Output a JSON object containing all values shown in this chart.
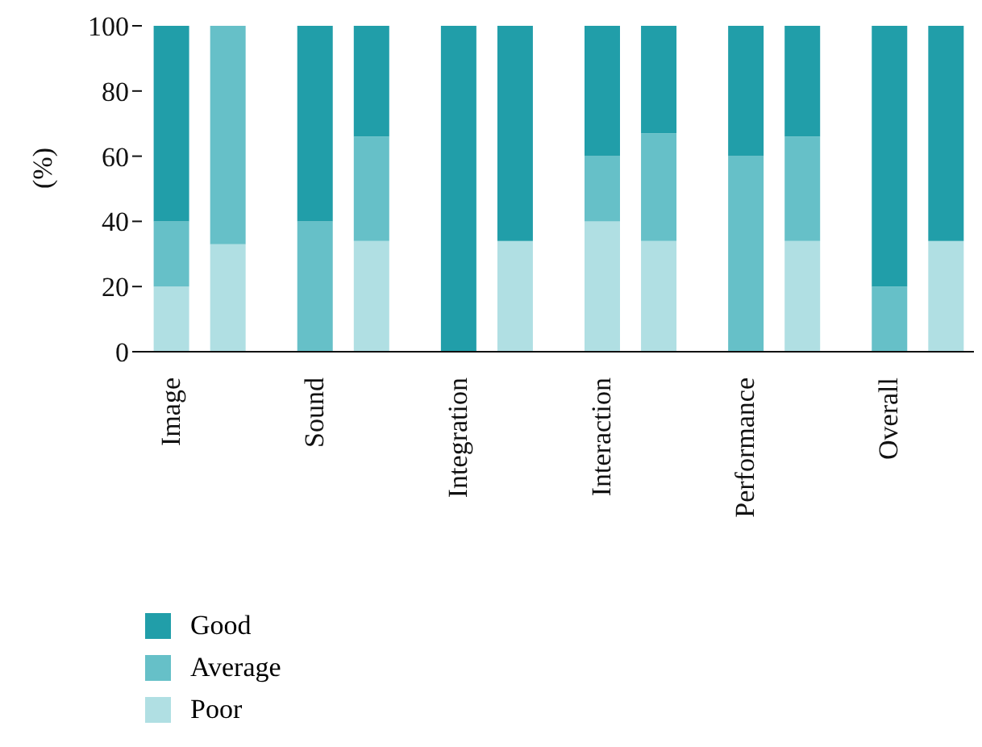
{
  "chart_data": {
    "type": "bar",
    "ylabel": "(%)",
    "categories": [
      "Image",
      null,
      "Sound",
      null,
      "Integration",
      null,
      "Interaction",
      null,
      "Performance",
      null,
      "Overall",
      null
    ],
    "stacked": true,
    "series": [
      {
        "name": "Poor",
        "color": "#b0dfe3",
        "values": [
          20,
          33,
          0,
          34,
          0,
          34,
          40,
          34,
          0,
          34,
          0,
          34
        ]
      },
      {
        "name": "Average",
        "color": "#66c0c8",
        "values": [
          20,
          67,
          40,
          32,
          0,
          0,
          20,
          33,
          60,
          32,
          20,
          0
        ]
      },
      {
        "name": "Good",
        "color": "#219ea9",
        "values": [
          60,
          0,
          60,
          34,
          100,
          66,
          40,
          33,
          40,
          34,
          80,
          66
        ]
      }
    ],
    "ylim": [
      0,
      100
    ],
    "yticks": [
      0,
      20,
      40,
      60,
      80,
      100
    ],
    "legend": "bottom left"
  }
}
